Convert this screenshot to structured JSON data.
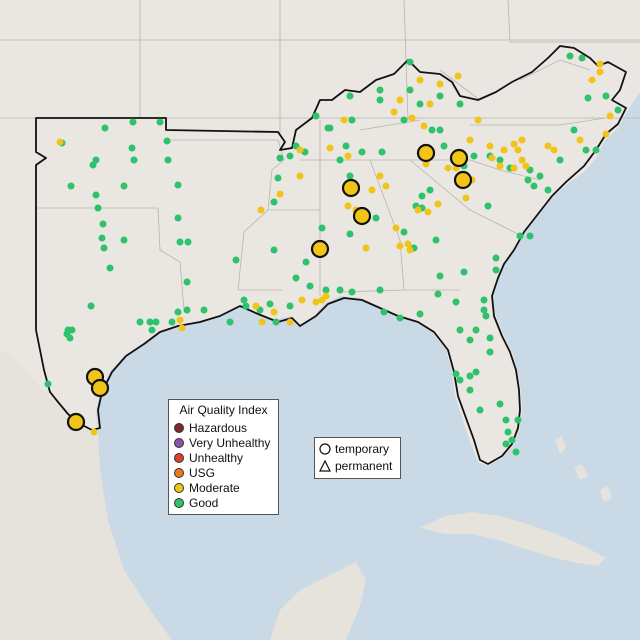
{
  "legend": {
    "title": "Air Quality Index",
    "categories": [
      {
        "label": "Hazardous",
        "color": "#7e2a2a"
      },
      {
        "label": "Very Unhealthy",
        "color": "#8f4fb0"
      },
      {
        "label": "Unhealthy",
        "color": "#e0402a"
      },
      {
        "label": "USG",
        "color": "#e97b1a"
      },
      {
        "label": "Moderate",
        "color": "#f2c417"
      },
      {
        "label": "Good",
        "color": "#2dc26b"
      }
    ]
  },
  "monitor_types": [
    {
      "label": "temporary",
      "shape": "circle"
    },
    {
      "label": "permanent",
      "shape": "triangle"
    }
  ],
  "colors": {
    "land": "#eae6e1",
    "water": "#cad9e6",
    "boundary": "#111111",
    "state_lines": "#b9b4ae"
  }
}
